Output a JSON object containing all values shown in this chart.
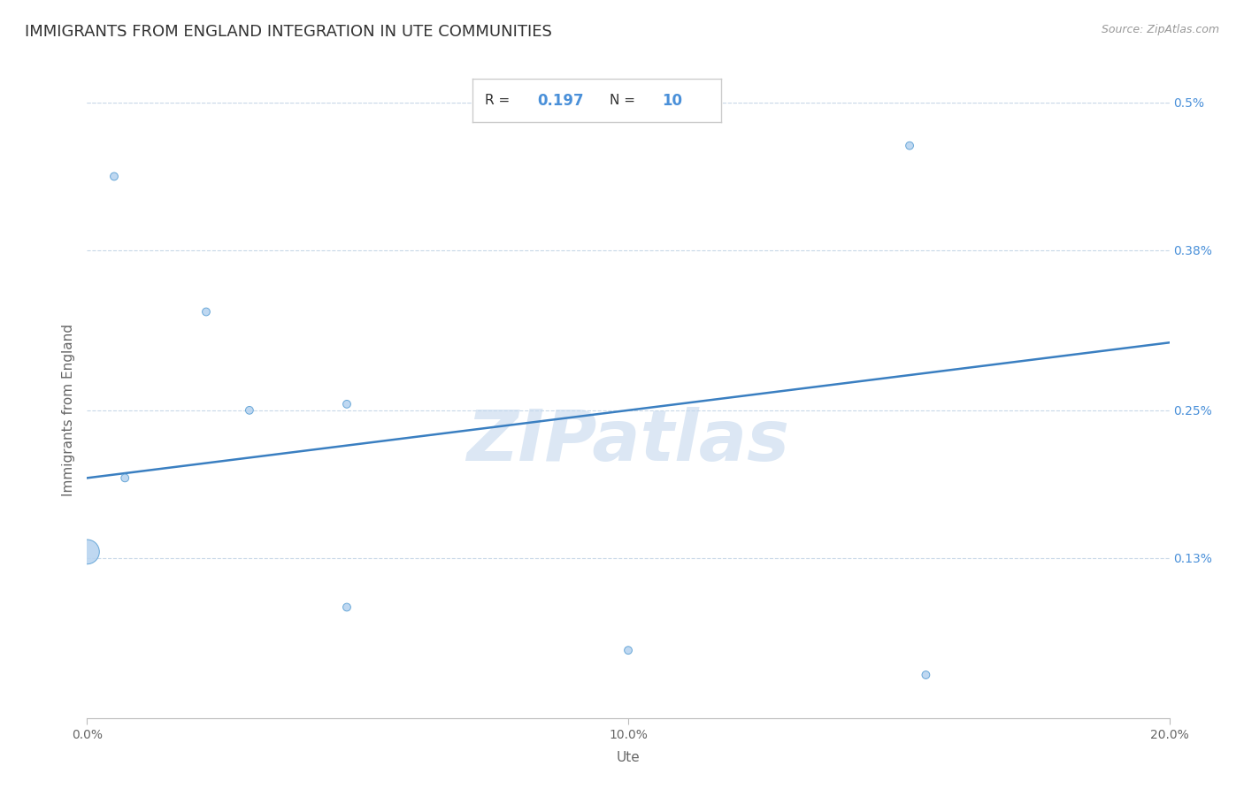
{
  "title": "IMMIGRANTS FROM ENGLAND INTEGRATION IN UTE COMMUNITIES",
  "source": "Source: ZipAtlas.com",
  "xlabel": "Ute",
  "ylabel": "Immigrants from England",
  "R": 0.197,
  "N": 10,
  "x_min": 0.0,
  "x_max": 0.2,
  "y_min": 0.0,
  "y_max": 0.005,
  "y_ticks": [
    0.0013,
    0.0025,
    0.0038,
    0.005
  ],
  "y_tick_labels": [
    "0.13%",
    "0.25%",
    "0.38%",
    "0.5%"
  ],
  "x_ticks": [
    0.0,
    0.1,
    0.2
  ],
  "x_tick_labels": [
    "0.0%",
    "10.0%",
    "20.0%"
  ],
  "scatter_x": [
    0.005,
    0.022,
    0.03,
    0.007,
    0.0,
    0.048,
    0.048,
    0.1,
    0.155,
    0.152
  ],
  "scatter_y": [
    0.0044,
    0.0033,
    0.0025,
    0.00195,
    0.00135,
    0.00255,
    0.0009,
    0.00055,
    0.00035,
    0.00465
  ],
  "scatter_sizes": [
    40,
    40,
    40,
    40,
    400,
    40,
    40,
    40,
    40,
    40
  ],
  "scatter_color": "#b8d4f0",
  "scatter_edgecolor": "#5a9fd4",
  "line_color": "#3a7fc1",
  "line_start_x": 0.0,
  "line_start_y": 0.00195,
  "line_end_x": 0.2,
  "line_end_y": 0.00305,
  "watermark_text": "ZIPatlas",
  "watermark_color": "#c5d8ee",
  "background_color": "#ffffff",
  "grid_color": "#c8d8e8",
  "title_fontsize": 13,
  "axis_label_fontsize": 11,
  "tick_label_fontsize": 10,
  "right_tick_color": "#4a90d9",
  "ann_R_label_color": "#333333",
  "ann_R_value_color": "#4a90d9",
  "ann_N_label_color": "#333333",
  "ann_N_value_color": "#4a90d9"
}
